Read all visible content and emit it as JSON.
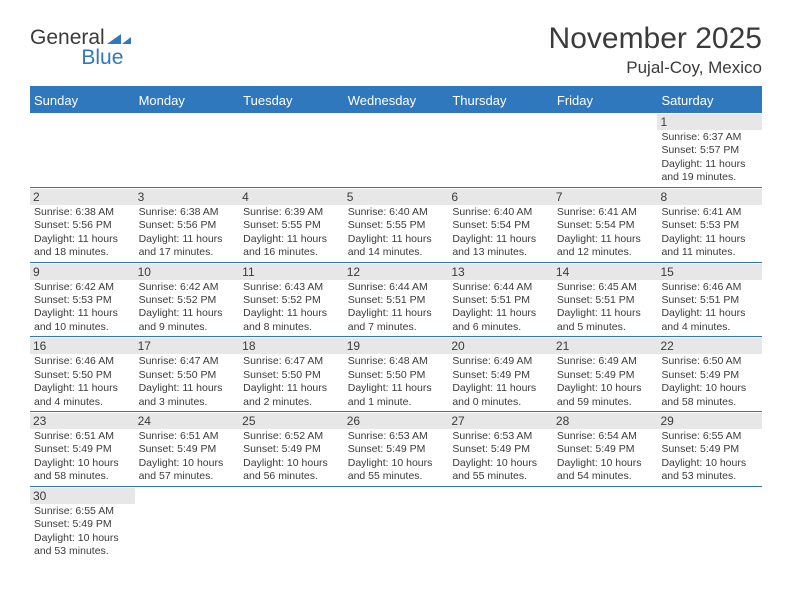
{
  "logo": {
    "part1": "General",
    "part2": "Blue"
  },
  "colors": {
    "accent": "#2f78bd",
    "text": "#3b3b3b",
    "daynum_bg": "#e7e7e7",
    "bg": "#ffffff"
  },
  "header": {
    "month_title": "November 2025",
    "location": "Pujal-Coy, Mexico"
  },
  "labels": {
    "sunrise_prefix": "Sunrise: ",
    "sunset_prefix": "Sunset: ",
    "daylight_prefix": "Daylight: "
  },
  "weekdays": [
    "Sunday",
    "Monday",
    "Tuesday",
    "Wednesday",
    "Thursday",
    "Friday",
    "Saturday"
  ],
  "weeks": [
    [
      {
        "blank": true
      },
      {
        "blank": true
      },
      {
        "blank": true
      },
      {
        "blank": true
      },
      {
        "blank": true
      },
      {
        "blank": true
      },
      {
        "day": "1",
        "sunrise": "6:37 AM",
        "sunset": "5:57 PM",
        "daylight": "11 hours and 19 minutes."
      }
    ],
    [
      {
        "day": "2",
        "sunrise": "6:38 AM",
        "sunset": "5:56 PM",
        "daylight": "11 hours and 18 minutes."
      },
      {
        "day": "3",
        "sunrise": "6:38 AM",
        "sunset": "5:56 PM",
        "daylight": "11 hours and 17 minutes."
      },
      {
        "day": "4",
        "sunrise": "6:39 AM",
        "sunset": "5:55 PM",
        "daylight": "11 hours and 16 minutes."
      },
      {
        "day": "5",
        "sunrise": "6:40 AM",
        "sunset": "5:55 PM",
        "daylight": "11 hours and 14 minutes."
      },
      {
        "day": "6",
        "sunrise": "6:40 AM",
        "sunset": "5:54 PM",
        "daylight": "11 hours and 13 minutes."
      },
      {
        "day": "7",
        "sunrise": "6:41 AM",
        "sunset": "5:54 PM",
        "daylight": "11 hours and 12 minutes."
      },
      {
        "day": "8",
        "sunrise": "6:41 AM",
        "sunset": "5:53 PM",
        "daylight": "11 hours and 11 minutes."
      }
    ],
    [
      {
        "day": "9",
        "sunrise": "6:42 AM",
        "sunset": "5:53 PM",
        "daylight": "11 hours and 10 minutes."
      },
      {
        "day": "10",
        "sunrise": "6:42 AM",
        "sunset": "5:52 PM",
        "daylight": "11 hours and 9 minutes."
      },
      {
        "day": "11",
        "sunrise": "6:43 AM",
        "sunset": "5:52 PM",
        "daylight": "11 hours and 8 minutes."
      },
      {
        "day": "12",
        "sunrise": "6:44 AM",
        "sunset": "5:51 PM",
        "daylight": "11 hours and 7 minutes."
      },
      {
        "day": "13",
        "sunrise": "6:44 AM",
        "sunset": "5:51 PM",
        "daylight": "11 hours and 6 minutes."
      },
      {
        "day": "14",
        "sunrise": "6:45 AM",
        "sunset": "5:51 PM",
        "daylight": "11 hours and 5 minutes."
      },
      {
        "day": "15",
        "sunrise": "6:46 AM",
        "sunset": "5:51 PM",
        "daylight": "11 hours and 4 minutes."
      }
    ],
    [
      {
        "day": "16",
        "sunrise": "6:46 AM",
        "sunset": "5:50 PM",
        "daylight": "11 hours and 4 minutes."
      },
      {
        "day": "17",
        "sunrise": "6:47 AM",
        "sunset": "5:50 PM",
        "daylight": "11 hours and 3 minutes."
      },
      {
        "day": "18",
        "sunrise": "6:47 AM",
        "sunset": "5:50 PM",
        "daylight": "11 hours and 2 minutes."
      },
      {
        "day": "19",
        "sunrise": "6:48 AM",
        "sunset": "5:50 PM",
        "daylight": "11 hours and 1 minute."
      },
      {
        "day": "20",
        "sunrise": "6:49 AM",
        "sunset": "5:49 PM",
        "daylight": "11 hours and 0 minutes."
      },
      {
        "day": "21",
        "sunrise": "6:49 AM",
        "sunset": "5:49 PM",
        "daylight": "10 hours and 59 minutes."
      },
      {
        "day": "22",
        "sunrise": "6:50 AM",
        "sunset": "5:49 PM",
        "daylight": "10 hours and 58 minutes."
      }
    ],
    [
      {
        "day": "23",
        "sunrise": "6:51 AM",
        "sunset": "5:49 PM",
        "daylight": "10 hours and 58 minutes."
      },
      {
        "day": "24",
        "sunrise": "6:51 AM",
        "sunset": "5:49 PM",
        "daylight": "10 hours and 57 minutes."
      },
      {
        "day": "25",
        "sunrise": "6:52 AM",
        "sunset": "5:49 PM",
        "daylight": "10 hours and 56 minutes."
      },
      {
        "day": "26",
        "sunrise": "6:53 AM",
        "sunset": "5:49 PM",
        "daylight": "10 hours and 55 minutes."
      },
      {
        "day": "27",
        "sunrise": "6:53 AM",
        "sunset": "5:49 PM",
        "daylight": "10 hours and 55 minutes."
      },
      {
        "day": "28",
        "sunrise": "6:54 AM",
        "sunset": "5:49 PM",
        "daylight": "10 hours and 54 minutes."
      },
      {
        "day": "29",
        "sunrise": "6:55 AM",
        "sunset": "5:49 PM",
        "daylight": "10 hours and 53 minutes."
      }
    ],
    [
      {
        "day": "30",
        "sunrise": "6:55 AM",
        "sunset": "5:49 PM",
        "daylight": "10 hours and 53 minutes."
      },
      {
        "blank": true
      },
      {
        "blank": true
      },
      {
        "blank": true
      },
      {
        "blank": true
      },
      {
        "blank": true
      },
      {
        "blank": true
      }
    ]
  ]
}
